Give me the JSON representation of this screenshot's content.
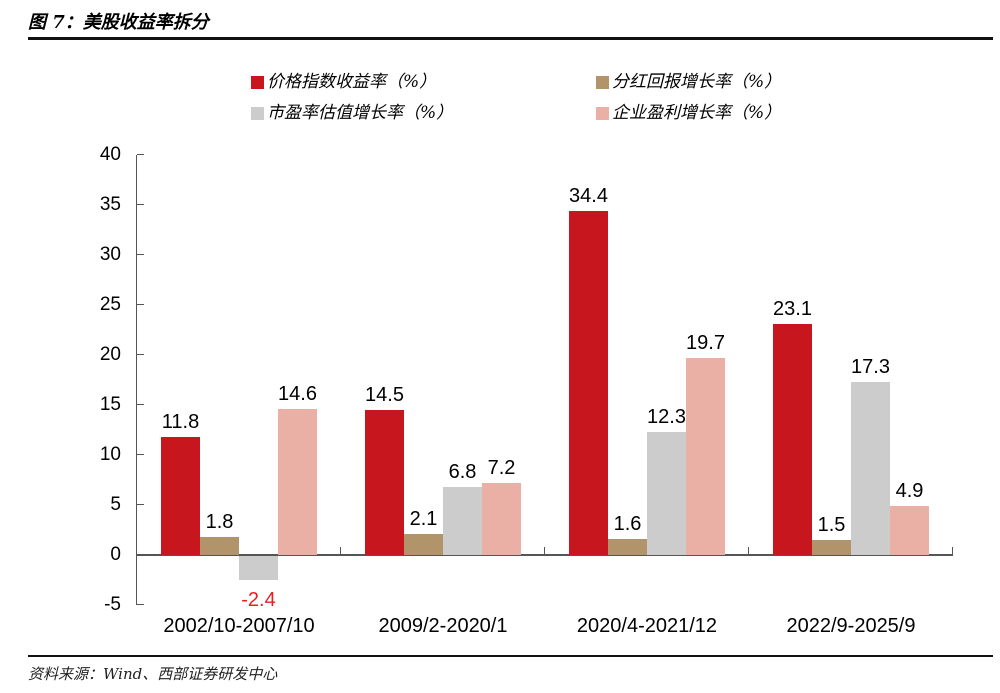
{
  "header": {
    "title": "图 7：美股收益率拆分"
  },
  "footer": {
    "source": "资料来源：Wind、西部证券研发中心"
  },
  "chart_data": {
    "type": "bar",
    "title": "图 7：美股收益率拆分",
    "categories": [
      "2002/10-2007/10",
      "2009/2-2020/1",
      "2020/4-2021/12",
      "2022/9-2025/9"
    ],
    "series": [
      {
        "name": "价格指数收益率（%）",
        "color": "#c8161e",
        "values": [
          11.8,
          14.5,
          34.4,
          23.1
        ]
      },
      {
        "name": "分红回报增长率（%）",
        "color": "#b2946b",
        "values": [
          1.8,
          2.1,
          1.6,
          1.5
        ]
      },
      {
        "name": "市盈率估值增长率（%）",
        "color": "#cccccc",
        "values": [
          -2.4,
          6.8,
          12.3,
          17.3
        ]
      },
      {
        "name": "企业盈利增长率（%）",
        "color": "#eab0a6",
        "values": [
          14.6,
          7.2,
          19.7,
          4.9
        ]
      }
    ],
    "ylim": [
      -5,
      40
    ],
    "yticks": [
      40,
      35,
      30,
      25,
      20,
      15,
      10,
      5,
      0,
      -5
    ],
    "grid": false,
    "legend_position": "top",
    "value_labels": true,
    "value_label_color": "#000000",
    "negative_value_label_color": "#ed1c24",
    "axis_color": "#555555"
  }
}
